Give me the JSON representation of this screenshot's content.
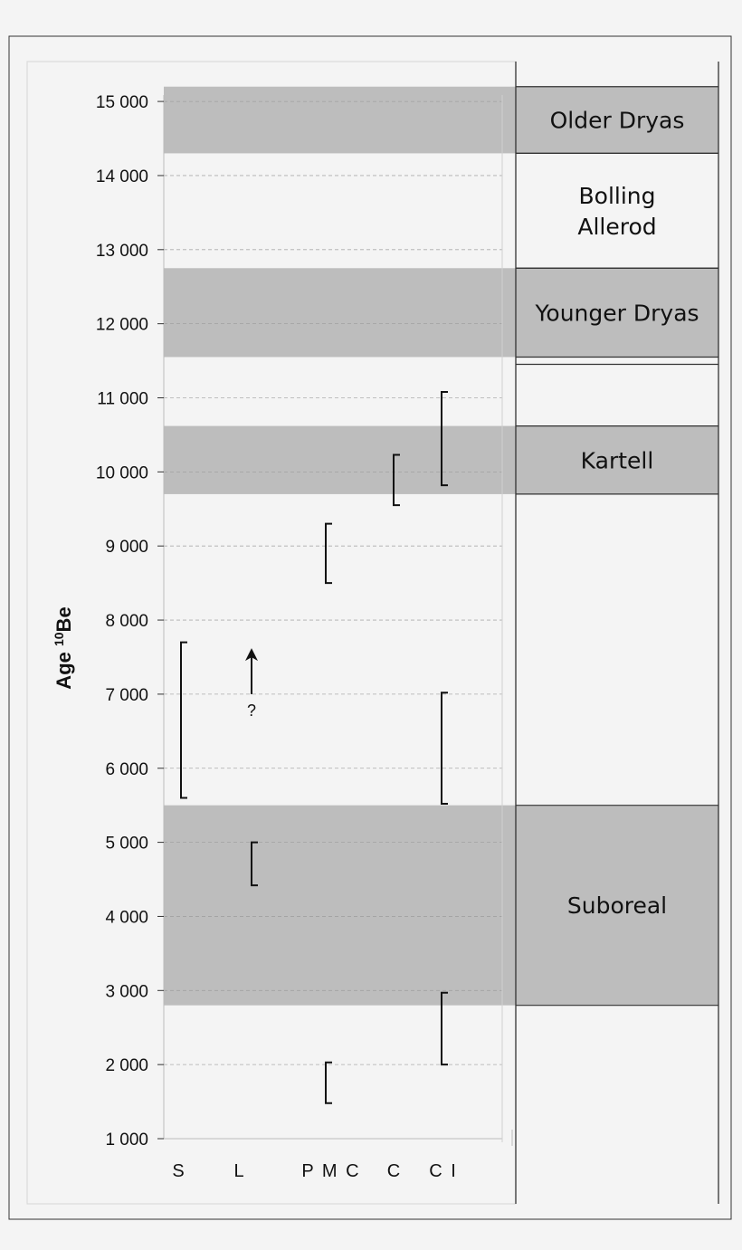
{
  "chart_data": {
    "type": "range",
    "ylabel": {
      "main": "Age ",
      "sup": "10",
      "rest": "Be"
    },
    "ylim": [
      1000,
      15000
    ],
    "y_ticks": [
      "1 000",
      "2 000",
      "3 000",
      "4 000",
      "5 000",
      "6 000",
      "7 000",
      "8 000",
      "9 000",
      "10 000",
      "11 000",
      "12 000",
      "13 000",
      "14 000",
      "15 000"
    ],
    "y_tick_values": [
      1000,
      2000,
      3000,
      4000,
      5000,
      6000,
      7000,
      8000,
      9000,
      10000,
      11000,
      12000,
      13000,
      14000,
      15000
    ],
    "categories": [
      "S",
      "L",
      "PMC",
      "C",
      "CI"
    ],
    "category_labels": [
      "S",
      "L",
      "P M C",
      "C",
      "C I"
    ],
    "grid": "horizontal dashed",
    "periods": [
      {
        "label_lines": [
          "Older Dryas"
        ],
        "from": 14300,
        "to": 15200,
        "shaded": true
      },
      {
        "label_lines": [
          "Bolling",
          "Allerod"
        ],
        "from": 12750,
        "to": 14300,
        "shaded": false
      },
      {
        "label_lines": [
          "Younger Dryas"
        ],
        "from": 11550,
        "to": 12750,
        "shaded": true
      },
      {
        "label_lines": [
          "Kartell"
        ],
        "from": 9700,
        "to": 10620,
        "shaded": true
      },
      {
        "label_lines": [
          "Suboreal"
        ],
        "from": 2800,
        "to": 5500,
        "shaded": true
      }
    ],
    "ranges": [
      {
        "category": "S",
        "min": 5600,
        "max": 7700
      },
      {
        "category": "L",
        "min": 4420,
        "max": 5000
      },
      {
        "category": "PMC",
        "min": 8500,
        "max": 9300
      },
      {
        "category": "PMC",
        "min": 1480,
        "max": 2030
      },
      {
        "category": "C",
        "min": 9550,
        "max": 10230
      },
      {
        "category": "CI",
        "min": 9820,
        "max": 11080
      },
      {
        "category": "CI",
        "min": 5520,
        "max": 7020
      },
      {
        "category": "CI",
        "min": 2000,
        "max": 2970
      }
    ],
    "arrow": {
      "category": "L",
      "from": 7000,
      "to": 7620,
      "label": "?"
    },
    "colors": {
      "shade": "#bdbdbd",
      "background": "#f4f4f4",
      "grid": "#9a9a9a",
      "ink": "#111111"
    }
  }
}
